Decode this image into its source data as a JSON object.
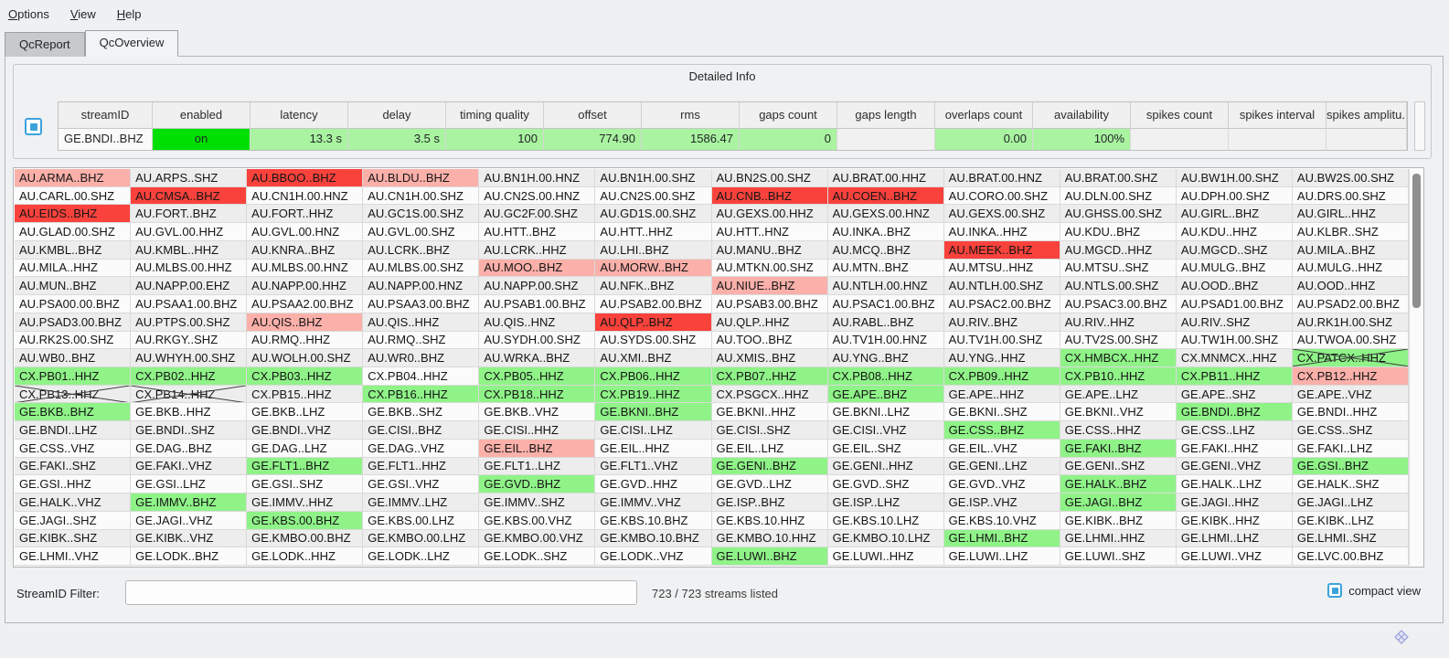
{
  "menu": {
    "items": [
      {
        "label": "Options"
      },
      {
        "label": "View"
      },
      {
        "label": "Help"
      }
    ]
  },
  "tabs": {
    "items": [
      {
        "label": "QcReport",
        "active": false
      },
      {
        "label": "QcOverview",
        "active": true
      }
    ]
  },
  "detail": {
    "title": "Detailed Info",
    "columns": [
      "streamID",
      "enabled",
      "latency",
      "delay",
      "timing quality",
      "offset",
      "rms",
      "gaps count",
      "gaps length",
      "overlaps count",
      "availability",
      "spikes count",
      "spikes interval",
      "spikes amplitu.."
    ],
    "row": {
      "cells": [
        {
          "text": "GE.BNDI..BHZ",
          "state": "plain",
          "align": "left"
        },
        {
          "text": "on",
          "state": "bright",
          "align": "center"
        },
        {
          "text": "13.3 s",
          "state": "pale",
          "align": "right"
        },
        {
          "text": "3.5 s",
          "state": "pale",
          "align": "right"
        },
        {
          "text": "100",
          "state": "pale",
          "align": "right"
        },
        {
          "text": "774.90",
          "state": "pale",
          "align": "right"
        },
        {
          "text": "1586.47",
          "state": "pale",
          "align": "right"
        },
        {
          "text": "0",
          "state": "pale",
          "align": "right"
        },
        {
          "text": "",
          "state": "plain",
          "align": "right"
        },
        {
          "text": "0.00",
          "state": "pale",
          "align": "right"
        },
        {
          "text": "100%",
          "state": "pale",
          "align": "right"
        },
        {
          "text": "",
          "state": "plain",
          "align": "right"
        },
        {
          "text": "",
          "state": "plain",
          "align": "right"
        },
        {
          "text": "",
          "state": "plain",
          "align": "right"
        }
      ]
    }
  },
  "grid": {
    "state_legend": {
      "": "normal",
      "r": "red-alert",
      "p": "pink-warning",
      "g": "green-ok",
      "x": "crossed-disabled",
      "gx": "green-crossed"
    },
    "rows": [
      [
        [
          "AU.ARMA..BHZ",
          "p"
        ],
        [
          "AU.ARPS..SHZ",
          ""
        ],
        [
          "AU.BBOO..BHZ",
          "r"
        ],
        [
          "AU.BLDU..BHZ",
          "p"
        ],
        [
          "AU.BN1H.00.HNZ",
          ""
        ],
        [
          "AU.BN1H.00.SHZ",
          ""
        ],
        [
          "AU.BN2S.00.SHZ",
          ""
        ],
        [
          "AU.BRAT.00.HHZ",
          ""
        ],
        [
          "AU.BRAT.00.HNZ",
          ""
        ],
        [
          "AU.BRAT.00.SHZ",
          ""
        ],
        [
          "AU.BW1H.00.SHZ",
          ""
        ],
        [
          "AU.BW2S.00.SHZ",
          ""
        ]
      ],
      [
        [
          "AU.CARL.00.SHZ",
          ""
        ],
        [
          "AU.CMSA..BHZ",
          "r"
        ],
        [
          "AU.CN1H.00.HNZ",
          ""
        ],
        [
          "AU.CN1H.00.SHZ",
          ""
        ],
        [
          "AU.CN2S.00.HNZ",
          ""
        ],
        [
          "AU.CN2S.00.SHZ",
          ""
        ],
        [
          "AU.CNB..BHZ",
          "r"
        ],
        [
          "AU.COEN..BHZ",
          "r"
        ],
        [
          "AU.CORO.00.SHZ",
          ""
        ],
        [
          "AU.DLN.00.SHZ",
          ""
        ],
        [
          "AU.DPH.00.SHZ",
          ""
        ],
        [
          "AU.DRS.00.SHZ",
          ""
        ]
      ],
      [
        [
          "AU.EIDS..BHZ",
          "r"
        ],
        [
          "AU.FORT..BHZ",
          ""
        ],
        [
          "AU.FORT..HHZ",
          ""
        ],
        [
          "AU.GC1S.00.SHZ",
          ""
        ],
        [
          "AU.GC2F.00.SHZ",
          ""
        ],
        [
          "AU.GD1S.00.SHZ",
          ""
        ],
        [
          "AU.GEXS.00.HHZ",
          ""
        ],
        [
          "AU.GEXS.00.HNZ",
          ""
        ],
        [
          "AU.GEXS.00.SHZ",
          ""
        ],
        [
          "AU.GHSS.00.SHZ",
          ""
        ],
        [
          "AU.GIRL..BHZ",
          ""
        ],
        [
          "AU.GIRL..HHZ",
          ""
        ]
      ],
      [
        [
          "AU.GLAD.00.SHZ",
          ""
        ],
        [
          "AU.GVL.00.HHZ",
          ""
        ],
        [
          "AU.GVL.00.HNZ",
          ""
        ],
        [
          "AU.GVL.00.SHZ",
          ""
        ],
        [
          "AU.HTT..BHZ",
          ""
        ],
        [
          "AU.HTT..HHZ",
          ""
        ],
        [
          "AU.HTT..HNZ",
          ""
        ],
        [
          "AU.INKA..BHZ",
          ""
        ],
        [
          "AU.INKA..HHZ",
          ""
        ],
        [
          "AU.KDU..BHZ",
          ""
        ],
        [
          "AU.KDU..HHZ",
          ""
        ],
        [
          "AU.KLBR..SHZ",
          ""
        ]
      ],
      [
        [
          "AU.KMBL..BHZ",
          ""
        ],
        [
          "AU.KMBL..HHZ",
          ""
        ],
        [
          "AU.KNRA..BHZ",
          ""
        ],
        [
          "AU.LCRK..BHZ",
          ""
        ],
        [
          "AU.LCRK..HHZ",
          ""
        ],
        [
          "AU.LHI..BHZ",
          ""
        ],
        [
          "AU.MANU..BHZ",
          ""
        ],
        [
          "AU.MCQ..BHZ",
          ""
        ],
        [
          "AU.MEEK..BHZ",
          "r"
        ],
        [
          "AU.MGCD..HHZ",
          ""
        ],
        [
          "AU.MGCD..SHZ",
          ""
        ],
        [
          "AU.MILA..BHZ",
          ""
        ]
      ],
      [
        [
          "AU.MILA..HHZ",
          ""
        ],
        [
          "AU.MLBS.00.HHZ",
          ""
        ],
        [
          "AU.MLBS.00.HNZ",
          ""
        ],
        [
          "AU.MLBS.00.SHZ",
          ""
        ],
        [
          "AU.MOO..BHZ",
          "p"
        ],
        [
          "AU.MORW..BHZ",
          "p"
        ],
        [
          "AU.MTKN.00.SHZ",
          ""
        ],
        [
          "AU.MTN..BHZ",
          ""
        ],
        [
          "AU.MTSU..HHZ",
          ""
        ],
        [
          "AU.MTSU..SHZ",
          ""
        ],
        [
          "AU.MULG..BHZ",
          ""
        ],
        [
          "AU.MULG..HHZ",
          ""
        ]
      ],
      [
        [
          "AU.MUN..BHZ",
          ""
        ],
        [
          "AU.NAPP.00.EHZ",
          ""
        ],
        [
          "AU.NAPP.00.HHZ",
          ""
        ],
        [
          "AU.NAPP.00.HNZ",
          ""
        ],
        [
          "AU.NAPP.00.SHZ",
          ""
        ],
        [
          "AU.NFK..BHZ",
          ""
        ],
        [
          "AU.NIUE..BHZ",
          "p"
        ],
        [
          "AU.NTLH.00.HNZ",
          ""
        ],
        [
          "AU.NTLH.00.SHZ",
          ""
        ],
        [
          "AU.NTLS.00.SHZ",
          ""
        ],
        [
          "AU.OOD..BHZ",
          ""
        ],
        [
          "AU.OOD..HHZ",
          ""
        ]
      ],
      [
        [
          "AU.PSA00.00.BHZ",
          ""
        ],
        [
          "AU.PSAA1.00.BHZ",
          ""
        ],
        [
          "AU.PSAA2.00.BHZ",
          ""
        ],
        [
          "AU.PSAA3.00.BHZ",
          ""
        ],
        [
          "AU.PSAB1.00.BHZ",
          ""
        ],
        [
          "AU.PSAB2.00.BHZ",
          ""
        ],
        [
          "AU.PSAB3.00.BHZ",
          ""
        ],
        [
          "AU.PSAC1.00.BHZ",
          ""
        ],
        [
          "AU.PSAC2.00.BHZ",
          ""
        ],
        [
          "AU.PSAC3.00.BHZ",
          ""
        ],
        [
          "AU.PSAD1.00.BHZ",
          ""
        ],
        [
          "AU.PSAD2.00.BHZ",
          ""
        ]
      ],
      [
        [
          "AU.PSAD3.00.BHZ",
          ""
        ],
        [
          "AU.PTPS.00.SHZ",
          ""
        ],
        [
          "AU.QIS..BHZ",
          "p"
        ],
        [
          "AU.QIS..HHZ",
          ""
        ],
        [
          "AU.QIS..HNZ",
          ""
        ],
        [
          "AU.QLP..BHZ",
          "r"
        ],
        [
          "AU.QLP..HHZ",
          ""
        ],
        [
          "AU.RABL..BHZ",
          ""
        ],
        [
          "AU.RIV..BHZ",
          ""
        ],
        [
          "AU.RIV..HHZ",
          ""
        ],
        [
          "AU.RIV..SHZ",
          ""
        ],
        [
          "AU.RK1H.00.SHZ",
          ""
        ]
      ],
      [
        [
          "AU.RK2S.00.SHZ",
          ""
        ],
        [
          "AU.RKGY..SHZ",
          ""
        ],
        [
          "AU.RMQ..HHZ",
          ""
        ],
        [
          "AU.RMQ..SHZ",
          ""
        ],
        [
          "AU.SYDH.00.SHZ",
          ""
        ],
        [
          "AU.SYDS.00.SHZ",
          ""
        ],
        [
          "AU.TOO..BHZ",
          ""
        ],
        [
          "AU.TV1H.00.HNZ",
          ""
        ],
        [
          "AU.TV1H.00.SHZ",
          ""
        ],
        [
          "AU.TV2S.00.SHZ",
          ""
        ],
        [
          "AU.TW1H.00.SHZ",
          ""
        ],
        [
          "AU.TWOA.00.SHZ",
          ""
        ]
      ],
      [
        [
          "AU.WB0..BHZ",
          ""
        ],
        [
          "AU.WHYH.00.SHZ",
          ""
        ],
        [
          "AU.WOLH.00.SHZ",
          ""
        ],
        [
          "AU.WR0..BHZ",
          ""
        ],
        [
          "AU.WRKA..BHZ",
          ""
        ],
        [
          "AU.XMI..BHZ",
          ""
        ],
        [
          "AU.XMIS..BHZ",
          ""
        ],
        [
          "AU.YNG..BHZ",
          ""
        ],
        [
          "AU.YNG..HHZ",
          ""
        ],
        [
          "CX.HMBCX..HHZ",
          "g"
        ],
        [
          "CX.MNMCX..HHZ",
          ""
        ],
        [
          "CX.PATCX..HHZ",
          "gx"
        ]
      ],
      [
        [
          "CX.PB01..HHZ",
          "g"
        ],
        [
          "CX.PB02..HHZ",
          "g"
        ],
        [
          "CX.PB03..HHZ",
          "g"
        ],
        [
          "CX.PB04..HHZ",
          ""
        ],
        [
          "CX.PB05..HHZ",
          "g"
        ],
        [
          "CX.PB06..HHZ",
          "g"
        ],
        [
          "CX.PB07..HHZ",
          "g"
        ],
        [
          "CX.PB08..HHZ",
          "g"
        ],
        [
          "CX.PB09..HHZ",
          "g"
        ],
        [
          "CX.PB10..HHZ",
          "g"
        ],
        [
          "CX.PB11..HHZ",
          "g"
        ],
        [
          "CX.PB12..HHZ",
          "p"
        ]
      ],
      [
        [
          "CX.PB13..HHZ",
          "x"
        ],
        [
          "CX.PB14..HHZ",
          "x"
        ],
        [
          "CX.PB15..HHZ",
          ""
        ],
        [
          "CX.PB16..HHZ",
          "g"
        ],
        [
          "CX.PB18..HHZ",
          "g"
        ],
        [
          "CX.PB19..HHZ",
          "g"
        ],
        [
          "CX.PSGCX..HHZ",
          ""
        ],
        [
          "GE.APE..BHZ",
          "g"
        ],
        [
          "GE.APE..HHZ",
          ""
        ],
        [
          "GE.APE..LHZ",
          ""
        ],
        [
          "GE.APE..SHZ",
          ""
        ],
        [
          "GE.APE..VHZ",
          ""
        ]
      ],
      [
        [
          "GE.BKB..BHZ",
          "g"
        ],
        [
          "GE.BKB..HHZ",
          ""
        ],
        [
          "GE.BKB..LHZ",
          ""
        ],
        [
          "GE.BKB..SHZ",
          ""
        ],
        [
          "GE.BKB..VHZ",
          ""
        ],
        [
          "GE.BKNI..BHZ",
          "g"
        ],
        [
          "GE.BKNI..HHZ",
          ""
        ],
        [
          "GE.BKNI..LHZ",
          ""
        ],
        [
          "GE.BKNI..SHZ",
          ""
        ],
        [
          "GE.BKNI..VHZ",
          ""
        ],
        [
          "GE.BNDI..BHZ",
          "g"
        ],
        [
          "GE.BNDI..HHZ",
          ""
        ]
      ],
      [
        [
          "GE.BNDI..LHZ",
          ""
        ],
        [
          "GE.BNDI..SHZ",
          ""
        ],
        [
          "GE.BNDI..VHZ",
          ""
        ],
        [
          "GE.CISI..BHZ",
          ""
        ],
        [
          "GE.CISI..HHZ",
          ""
        ],
        [
          "GE.CISI..LHZ",
          ""
        ],
        [
          "GE.CISI..SHZ",
          ""
        ],
        [
          "GE.CISI..VHZ",
          ""
        ],
        [
          "GE.CSS..BHZ",
          "g"
        ],
        [
          "GE.CSS..HHZ",
          ""
        ],
        [
          "GE.CSS..LHZ",
          ""
        ],
        [
          "GE.CSS..SHZ",
          ""
        ]
      ],
      [
        [
          "GE.CSS..VHZ",
          ""
        ],
        [
          "GE.DAG..BHZ",
          ""
        ],
        [
          "GE.DAG..LHZ",
          ""
        ],
        [
          "GE.DAG..VHZ",
          ""
        ],
        [
          "GE.EIL..BHZ",
          "p"
        ],
        [
          "GE.EIL..HHZ",
          ""
        ],
        [
          "GE.EIL..LHZ",
          ""
        ],
        [
          "GE.EIL..SHZ",
          ""
        ],
        [
          "GE.EIL..VHZ",
          ""
        ],
        [
          "GE.FAKI..BHZ",
          "g"
        ],
        [
          "GE.FAKI..HHZ",
          ""
        ],
        [
          "GE.FAKI..LHZ",
          ""
        ]
      ],
      [
        [
          "GE.FAKI..SHZ",
          ""
        ],
        [
          "GE.FAKI..VHZ",
          ""
        ],
        [
          "GE.FLT1..BHZ",
          "g"
        ],
        [
          "GE.FLT1..HHZ",
          ""
        ],
        [
          "GE.FLT1..LHZ",
          ""
        ],
        [
          "GE.FLT1..VHZ",
          ""
        ],
        [
          "GE.GENI..BHZ",
          "g"
        ],
        [
          "GE.GENI..HHZ",
          ""
        ],
        [
          "GE.GENI..LHZ",
          ""
        ],
        [
          "GE.GENI..SHZ",
          ""
        ],
        [
          "GE.GENI..VHZ",
          ""
        ],
        [
          "GE.GSI..BHZ",
          "g"
        ]
      ],
      [
        [
          "GE.GSI..HHZ",
          ""
        ],
        [
          "GE.GSI..LHZ",
          ""
        ],
        [
          "GE.GSI..SHZ",
          ""
        ],
        [
          "GE.GSI..VHZ",
          ""
        ],
        [
          "GE.GVD..BHZ",
          "g"
        ],
        [
          "GE.GVD..HHZ",
          ""
        ],
        [
          "GE.GVD..LHZ",
          ""
        ],
        [
          "GE.GVD..SHZ",
          ""
        ],
        [
          "GE.GVD..VHZ",
          ""
        ],
        [
          "GE.HALK..BHZ",
          "g"
        ],
        [
          "GE.HALK..LHZ",
          ""
        ],
        [
          "GE.HALK..SHZ",
          ""
        ]
      ],
      [
        [
          "GE.HALK..VHZ",
          ""
        ],
        [
          "GE.IMMV..BHZ",
          "g"
        ],
        [
          "GE.IMMV..HHZ",
          ""
        ],
        [
          "GE.IMMV..LHZ",
          ""
        ],
        [
          "GE.IMMV..SHZ",
          ""
        ],
        [
          "GE.IMMV..VHZ",
          ""
        ],
        [
          "GE.ISP..BHZ",
          ""
        ],
        [
          "GE.ISP..LHZ",
          ""
        ],
        [
          "GE.ISP..VHZ",
          ""
        ],
        [
          "GE.JAGI..BHZ",
          "g"
        ],
        [
          "GE.JAGI..HHZ",
          ""
        ],
        [
          "GE.JAGI..LHZ",
          ""
        ]
      ],
      [
        [
          "GE.JAGI..SHZ",
          ""
        ],
        [
          "GE.JAGI..VHZ",
          ""
        ],
        [
          "GE.KBS.00.BHZ",
          "g"
        ],
        [
          "GE.KBS.00.LHZ",
          ""
        ],
        [
          "GE.KBS.00.VHZ",
          ""
        ],
        [
          "GE.KBS.10.BHZ",
          ""
        ],
        [
          "GE.KBS.10.HHZ",
          ""
        ],
        [
          "GE.KBS.10.LHZ",
          ""
        ],
        [
          "GE.KBS.10.VHZ",
          ""
        ],
        [
          "GE.KIBK..BHZ",
          ""
        ],
        [
          "GE.KIBK..HHZ",
          ""
        ],
        [
          "GE.KIBK..LHZ",
          ""
        ]
      ],
      [
        [
          "GE.KIBK..SHZ",
          ""
        ],
        [
          "GE.KIBK..VHZ",
          ""
        ],
        [
          "GE.KMBO.00.BHZ",
          ""
        ],
        [
          "GE.KMBO.00.LHZ",
          ""
        ],
        [
          "GE.KMBO.00.VHZ",
          ""
        ],
        [
          "GE.KMBO.10.BHZ",
          ""
        ],
        [
          "GE.KMBO.10.HHZ",
          ""
        ],
        [
          "GE.KMBO.10.LHZ",
          ""
        ],
        [
          "GE.LHMI..BHZ",
          "g"
        ],
        [
          "GE.LHMI..HHZ",
          ""
        ],
        [
          "GE.LHMI..LHZ",
          ""
        ],
        [
          "GE.LHMI..SHZ",
          ""
        ]
      ],
      [
        [
          "GE.LHMI..VHZ",
          ""
        ],
        [
          "GE.LODK..BHZ",
          ""
        ],
        [
          "GE.LODK..HHZ",
          ""
        ],
        [
          "GE.LODK..LHZ",
          ""
        ],
        [
          "GE.LODK..SHZ",
          ""
        ],
        [
          "GE.LODK..VHZ",
          ""
        ],
        [
          "GE.LUWI..BHZ",
          "g"
        ],
        [
          "GE.LUWI..HHZ",
          ""
        ],
        [
          "GE.LUWI..LHZ",
          ""
        ],
        [
          "GE.LUWI..SHZ",
          ""
        ],
        [
          "GE.LUWI..VHZ",
          ""
        ],
        [
          "GE.LVC.00.BHZ",
          ""
        ]
      ]
    ]
  },
  "footer": {
    "filter_label": "StreamID Filter:",
    "filter_value": "",
    "status": "723 / 723 streams listed",
    "compact_label": "compact view",
    "compact_checked": true
  },
  "colors": {
    "red": "#f9423c",
    "pink": "#fbb0aa",
    "green": "#8ff388",
    "bright": "#00e000",
    "pale": "#a9f3a1",
    "blue": "#3ba3dc"
  }
}
